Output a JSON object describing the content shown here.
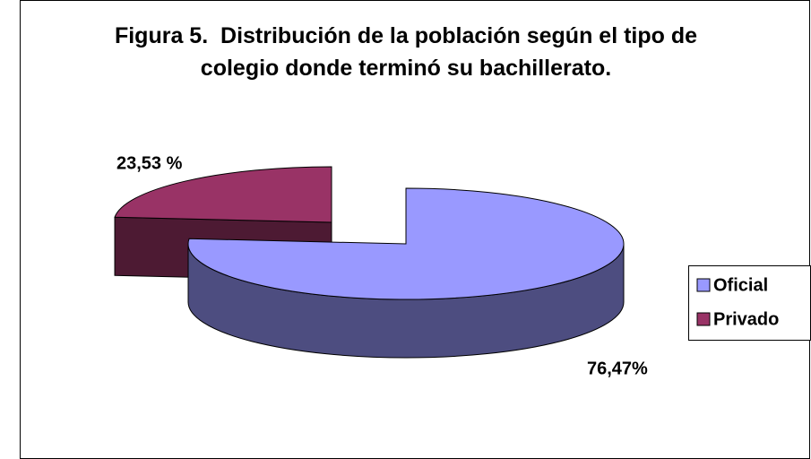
{
  "chart_data": {
    "type": "pie",
    "title": "Figura 5.  Distribución de la población según el tipo de colegio donde terminó su bachillerato.",
    "categories": [
      "Oficial",
      "Privado"
    ],
    "values": [
      76.47,
      23.53
    ],
    "value_labels": [
      "76,47%",
      "23,53 %"
    ],
    "colors": [
      "#9999ff",
      "#993366"
    ],
    "legend": "right"
  }
}
